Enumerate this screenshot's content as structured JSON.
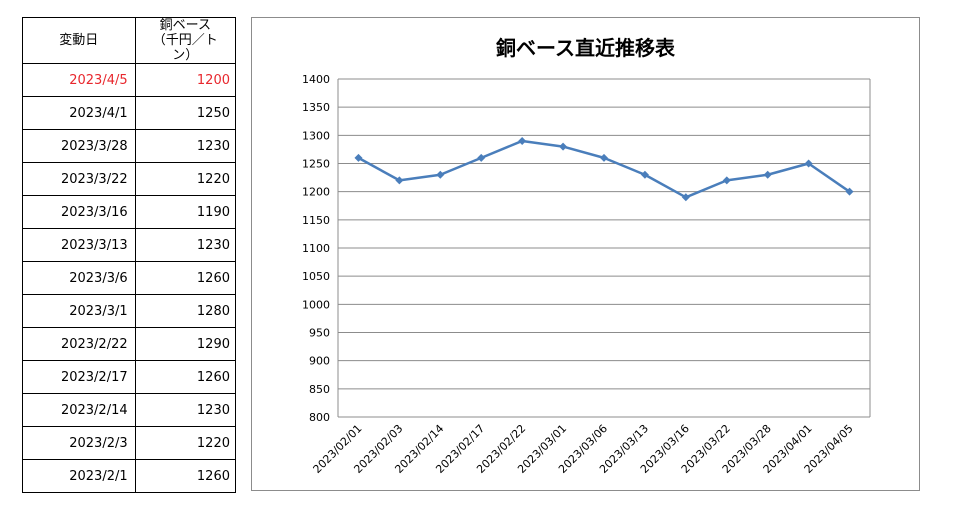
{
  "table": {
    "header_date": "変動日",
    "header_value_line1": "銅ベース",
    "header_value_line2": "（千円／トン）",
    "highlight_color": "#e8272d",
    "rows": [
      {
        "date": "2023/4/5",
        "value": "1200",
        "highlight": true
      },
      {
        "date": "2023/4/1",
        "value": "1250"
      },
      {
        "date": "2023/3/28",
        "value": "1230"
      },
      {
        "date": "2023/3/22",
        "value": "1220"
      },
      {
        "date": "2023/3/16",
        "value": "1190"
      },
      {
        "date": "2023/3/13",
        "value": "1230"
      },
      {
        "date": "2023/3/6",
        "value": "1260"
      },
      {
        "date": "2023/3/1",
        "value": "1280"
      },
      {
        "date": "2023/2/22",
        "value": "1290"
      },
      {
        "date": "2023/2/17",
        "value": "1260"
      },
      {
        "date": "2023/2/14",
        "value": "1230"
      },
      {
        "date": "2023/2/3",
        "value": "1220"
      },
      {
        "date": "2023/2/1",
        "value": "1260"
      }
    ]
  },
  "chart_data": {
    "type": "line",
    "title": "銅ベース直近推移表",
    "xlabel": "",
    "ylabel": "",
    "x": [
      "2023/02/01",
      "2023/02/03",
      "2023/02/14",
      "2023/02/17",
      "2023/02/22",
      "2023/03/01",
      "2023/03/06",
      "2023/03/13",
      "2023/03/16",
      "2023/03/22",
      "2023/03/28",
      "2023/04/01",
      "2023/04/05"
    ],
    "series": [
      {
        "values": [
          1260,
          1220,
          1230,
          1260,
          1290,
          1280,
          1260,
          1230,
          1190,
          1220,
          1230,
          1250,
          1200
        ]
      }
    ],
    "ylim": [
      800,
      1400
    ],
    "yticks": [
      800,
      850,
      900,
      950,
      1000,
      1050,
      1100,
      1150,
      1200,
      1250,
      1300,
      1350,
      1400
    ],
    "grid": true,
    "legend": "none",
    "line_color": "#4a7ebb",
    "grid_color": "#8c8c8c"
  }
}
